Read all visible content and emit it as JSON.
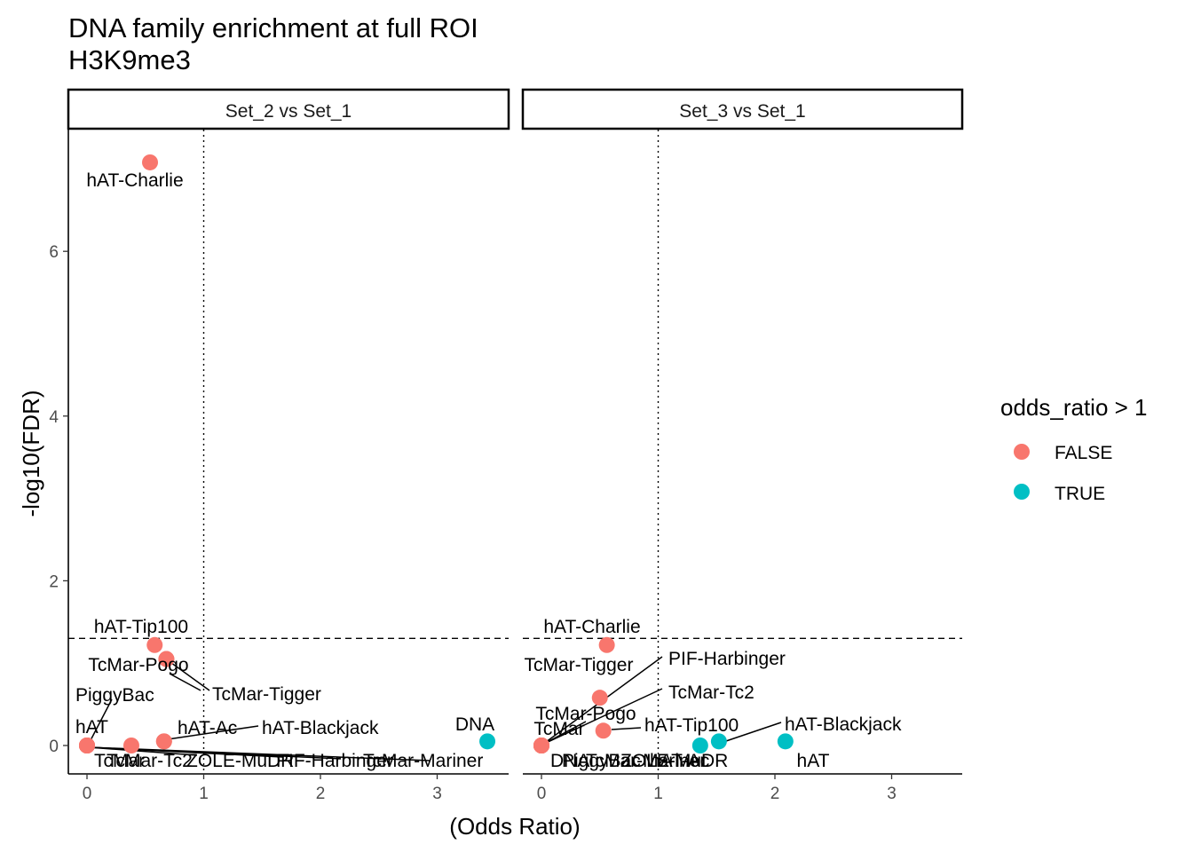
{
  "chart_data": {
    "type": "scatter",
    "title": "DNA family enrichment at full ROI",
    "subtitle": "H3K9me3",
    "xlabel": "(Odds Ratio)",
    "ylabel": "-log10(FDR)",
    "xlim": [
      -0.17,
      3.55
    ],
    "ylim": [
      -0.35,
      7.4
    ],
    "xticks": [
      "0",
      "1",
      "2",
      "3"
    ],
    "yticks": [
      "0",
      "2",
      "4",
      "6"
    ],
    "hline_y": 1.301,
    "vline_x": 1,
    "legend": {
      "title": "odds_ratio > 1",
      "entries": [
        {
          "label": "FALSE",
          "color": "#F8766D"
        },
        {
          "label": "TRUE",
          "color": "#00BFC4"
        }
      ]
    },
    "facets": [
      {
        "strip": "Set_2 vs Set_1",
        "points": [
          {
            "label": "hAT-Charlie",
            "x": 0.54,
            "y": 7.08,
            "enriched": false
          },
          {
            "label": "hAT-Tip100",
            "x": 0.58,
            "y": 1.22,
            "enriched": false
          },
          {
            "label": "TcMar-Pogo",
            "x": 0.68,
            "y": 1.05,
            "enriched": false
          },
          {
            "label": "TcMar-Tigger",
            "x": 0.68,
            "y": 1.05,
            "enriched": false
          },
          {
            "label": "hAT-Blackjack",
            "x": 0.66,
            "y": 0.05,
            "enriched": false
          },
          {
            "label": "hAT-Ac",
            "x": 0.66,
            "y": 0.05,
            "enriched": false
          },
          {
            "label": "TcMar-Tc2",
            "x": 0.38,
            "y": 0.0,
            "enriched": false
          },
          {
            "label": "PiggyBac",
            "x": 0.0,
            "y": 0.0,
            "enriched": false
          },
          {
            "label": "hAT",
            "x": 0.0,
            "y": 0.0,
            "enriched": false
          },
          {
            "label": "TcMar",
            "x": 0.0,
            "y": 0.0,
            "enriched": false
          },
          {
            "label": "ZOLE-MuDR",
            "x": 0.0,
            "y": 0.0,
            "enriched": false
          },
          {
            "label": "PIF-Harbinger",
            "x": 0.0,
            "y": 0.0,
            "enriched": false
          },
          {
            "label": "TcMar-Mariner",
            "x": 0.0,
            "y": 0.0,
            "enriched": false
          },
          {
            "label": "DNA",
            "x": 3.43,
            "y": 0.05,
            "enriched": true
          }
        ]
      },
      {
        "strip": "Set_3 vs Set_1",
        "points": [
          {
            "label": "hAT-Charlie",
            "x": 0.56,
            "y": 1.22,
            "enriched": false
          },
          {
            "label": "TcMar-Tigger",
            "x": 0.5,
            "y": 0.58,
            "enriched": false
          },
          {
            "label": "hAT-Tip100",
            "x": 0.53,
            "y": 0.18,
            "enriched": false
          },
          {
            "label": "PIF-Harbinger",
            "x": 0.0,
            "y": 0.0,
            "enriched": false
          },
          {
            "label": "TcMar-Tc2",
            "x": 0.0,
            "y": 0.0,
            "enriched": false
          },
          {
            "label": "TcMar-Pogo",
            "x": 0.0,
            "y": 0.0,
            "enriched": false
          },
          {
            "label": "TcMar",
            "x": 0.0,
            "y": 0.0,
            "enriched": false
          },
          {
            "label": "DNA",
            "x": 0.0,
            "y": 0.0,
            "enriched": false
          },
          {
            "label": "PiggyBac",
            "x": 0.0,
            "y": 0.0,
            "enriched": false
          },
          {
            "label": "TcMar-Mariner",
            "x": 0.0,
            "y": 0.0,
            "enriched": false
          },
          {
            "label": "hAT-Ac",
            "x": 0.0,
            "y": 0.0,
            "enriched": false
          },
          {
            "label": "hAT-Blackjack",
            "x": 1.52,
            "y": 0.05,
            "enriched": true
          },
          {
            "label": "ZOLE-MuDR",
            "x": 1.36,
            "y": 0.0,
            "enriched": true
          },
          {
            "label": "hAT",
            "x": 2.09,
            "y": 0.05,
            "enriched": true
          }
        ]
      }
    ]
  }
}
